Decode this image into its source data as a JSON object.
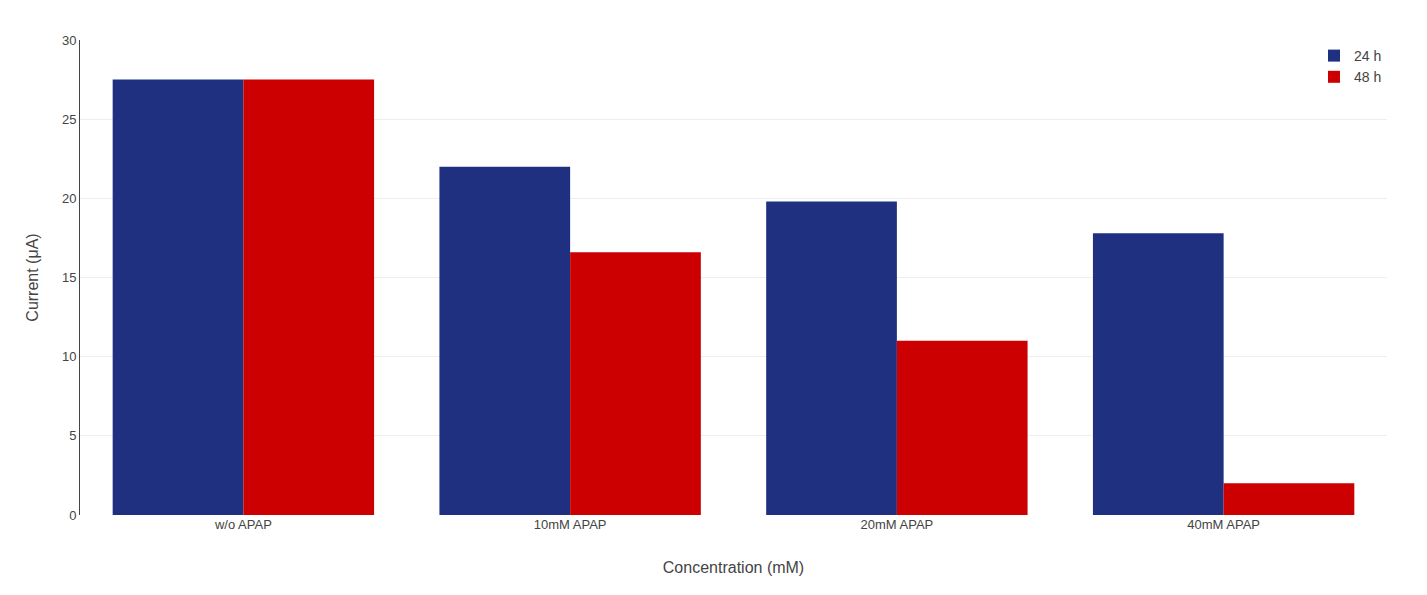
{
  "chart_data": {
    "type": "bar",
    "categories": [
      "w/o APAP",
      "10mM APAP",
      "20mM APAP",
      "40mM APAP"
    ],
    "series": [
      {
        "name": "24 h",
        "color": "#1F3080",
        "values": [
          27.5,
          22.0,
          19.8,
          17.8
        ]
      },
      {
        "name": "48 h",
        "color": "#CC0000",
        "values": [
          27.5,
          16.6,
          11.0,
          2.0
        ]
      }
    ],
    "xlabel": "Concentration (mM)",
    "ylabel": "Current (μA)",
    "ylim": [
      0,
      30
    ],
    "yticks": [
      0,
      5,
      10,
      15,
      20,
      25,
      30
    ],
    "grid": true,
    "legend": "upper right"
  }
}
